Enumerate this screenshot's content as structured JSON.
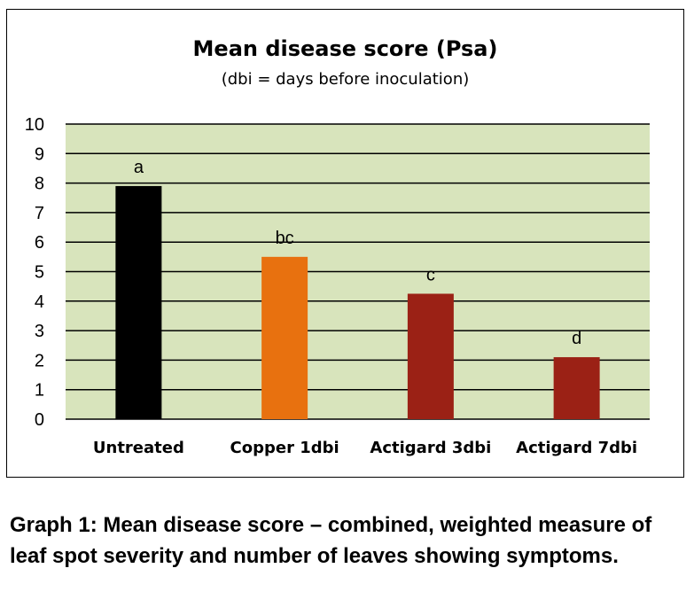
{
  "chart_data": {
    "type": "bar",
    "title": "Mean disease score (Psa)",
    "subtitle": "(dbi = days before inoculation)",
    "categories": [
      "Untreated",
      "Copper 1dbi",
      "Actigard 3dbi",
      "Actigard 7dbi"
    ],
    "values": [
      7.9,
      5.5,
      4.25,
      2.1
    ],
    "significance_letters": [
      "a",
      "bc",
      "c",
      "d"
    ],
    "bar_colors": [
      "#000000",
      "#E8710F",
      "#9B2115",
      "#9B2115"
    ],
    "xlabel": "",
    "ylabel": "",
    "ylim": [
      0,
      10
    ],
    "yticks": [
      "0",
      "1",
      "2",
      "3",
      "4",
      "5",
      "6",
      "7",
      "8",
      "9",
      "10"
    ],
    "grid": true,
    "legend": "none",
    "plot_background": "#D8E4BC"
  },
  "caption": "Graph 1: Mean disease score – combined, weighted measure of leaf spot severity and number of leaves showing symptoms."
}
